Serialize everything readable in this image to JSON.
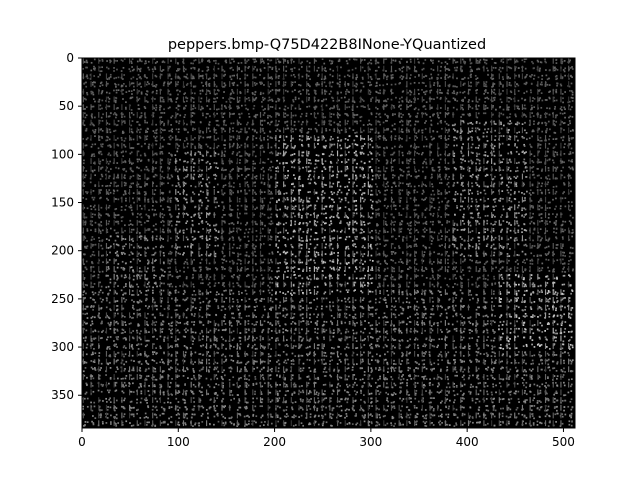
{
  "chart_data": {
    "type": "heatmap",
    "title": "peppers.bmp-Q75D422B8INone-YQuantized",
    "xlabel": "",
    "ylabel": "",
    "xlim": [
      0,
      512
    ],
    "ylim": [
      384,
      0
    ],
    "x_ticks": [
      0,
      100,
      200,
      300,
      400,
      500
    ],
    "y_ticks": [
      0,
      50,
      100,
      150,
      200,
      250,
      300,
      350
    ],
    "block_size": 8,
    "colormap": "gray",
    "background": "#000000",
    "grid": false,
    "bright_regions": [
      {
        "x": [
          200,
          300
        ],
        "y": [
          80,
          240
        ],
        "level": 0.75
      },
      {
        "x": [
          90,
          140
        ],
        "y": [
          90,
          200
        ],
        "level": 0.6
      },
      {
        "x": [
          380,
          460
        ],
        "y": [
          60,
          200
        ],
        "level": 0.6
      },
      {
        "x": [
          430,
          512
        ],
        "y": [
          220,
          300
        ],
        "level": 0.8
      },
      {
        "x": [
          20,
          80
        ],
        "y": [
          180,
          240
        ],
        "level": 0.5
      },
      {
        "x": [
          0,
          512
        ],
        "y": [
          240,
          384
        ],
        "level": 0.45
      }
    ]
  }
}
